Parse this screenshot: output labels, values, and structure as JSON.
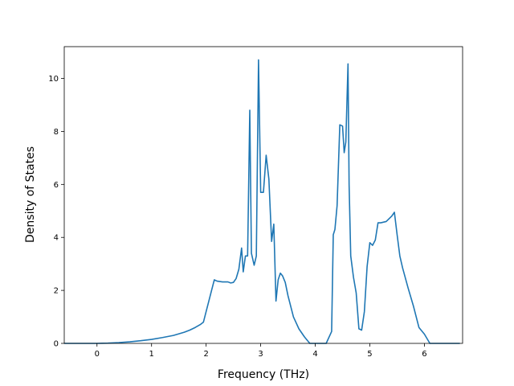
{
  "chart_data": {
    "type": "line",
    "title": "",
    "xlabel": "Frequency (THz)",
    "ylabel": "Density of States",
    "xlim": [
      -0.6,
      6.7
    ],
    "ylim": [
      0,
      11.2
    ],
    "xticks": [
      0,
      1,
      2,
      3,
      4,
      5,
      6
    ],
    "yticks": [
      0,
      2,
      4,
      6,
      8,
      10
    ],
    "grid": false,
    "legend": "none",
    "series": [
      {
        "color": "#1f77b4",
        "x": [
          -0.6,
          -0.2,
          0,
          0.2,
          0.4,
          0.6,
          0.8,
          1.0,
          1.2,
          1.4,
          1.6,
          1.7,
          1.8,
          1.9,
          1.95,
          2.0,
          2.05,
          2.1,
          2.15,
          2.2,
          2.3,
          2.4,
          2.45,
          2.5,
          2.55,
          2.6,
          2.65,
          2.68,
          2.72,
          2.76,
          2.8,
          2.83,
          2.88,
          2.92,
          2.96,
          3.0,
          3.05,
          3.1,
          3.15,
          3.2,
          3.24,
          3.28,
          3.32,
          3.36,
          3.4,
          3.45,
          3.5,
          3.6,
          3.7,
          3.8,
          3.9,
          4.0,
          4.1,
          4.2,
          4.3,
          4.33,
          4.36,
          4.4,
          4.45,
          4.5,
          4.53,
          4.56,
          4.6,
          4.62,
          4.65,
          4.7,
          4.75,
          4.8,
          4.85,
          4.9,
          4.95,
          5.0,
          5.05,
          5.1,
          5.15,
          5.2,
          5.3,
          5.4,
          5.45,
          5.5,
          5.55,
          5.6,
          5.7,
          5.8,
          5.9,
          6.0,
          6.1,
          6.2,
          6.65
        ],
        "values": [
          0,
          0,
          0,
          0.01,
          0.03,
          0.06,
          0.1,
          0.15,
          0.22,
          0.3,
          0.42,
          0.5,
          0.6,
          0.72,
          0.8,
          1.2,
          1.6,
          2.0,
          2.4,
          2.35,
          2.32,
          2.32,
          2.28,
          2.3,
          2.45,
          2.8,
          3.6,
          2.7,
          3.3,
          3.3,
          8.8,
          3.4,
          2.95,
          3.3,
          10.7,
          5.7,
          5.7,
          7.1,
          6.2,
          3.85,
          4.5,
          1.6,
          2.4,
          2.65,
          2.55,
          2.3,
          1.8,
          1.0,
          0.55,
          0.25,
          0.0,
          0.0,
          0.0,
          0.0,
          0.45,
          4.1,
          4.3,
          5.2,
          8.25,
          8.2,
          7.2,
          7.6,
          10.55,
          6.0,
          3.3,
          2.5,
          1.9,
          0.55,
          0.5,
          1.2,
          2.9,
          3.8,
          3.7,
          3.9,
          4.55,
          4.55,
          4.6,
          4.8,
          4.95,
          4.1,
          3.3,
          2.85,
          2.1,
          1.4,
          0.6,
          0.35,
          0.0,
          0.0,
          0.0
        ]
      }
    ]
  }
}
